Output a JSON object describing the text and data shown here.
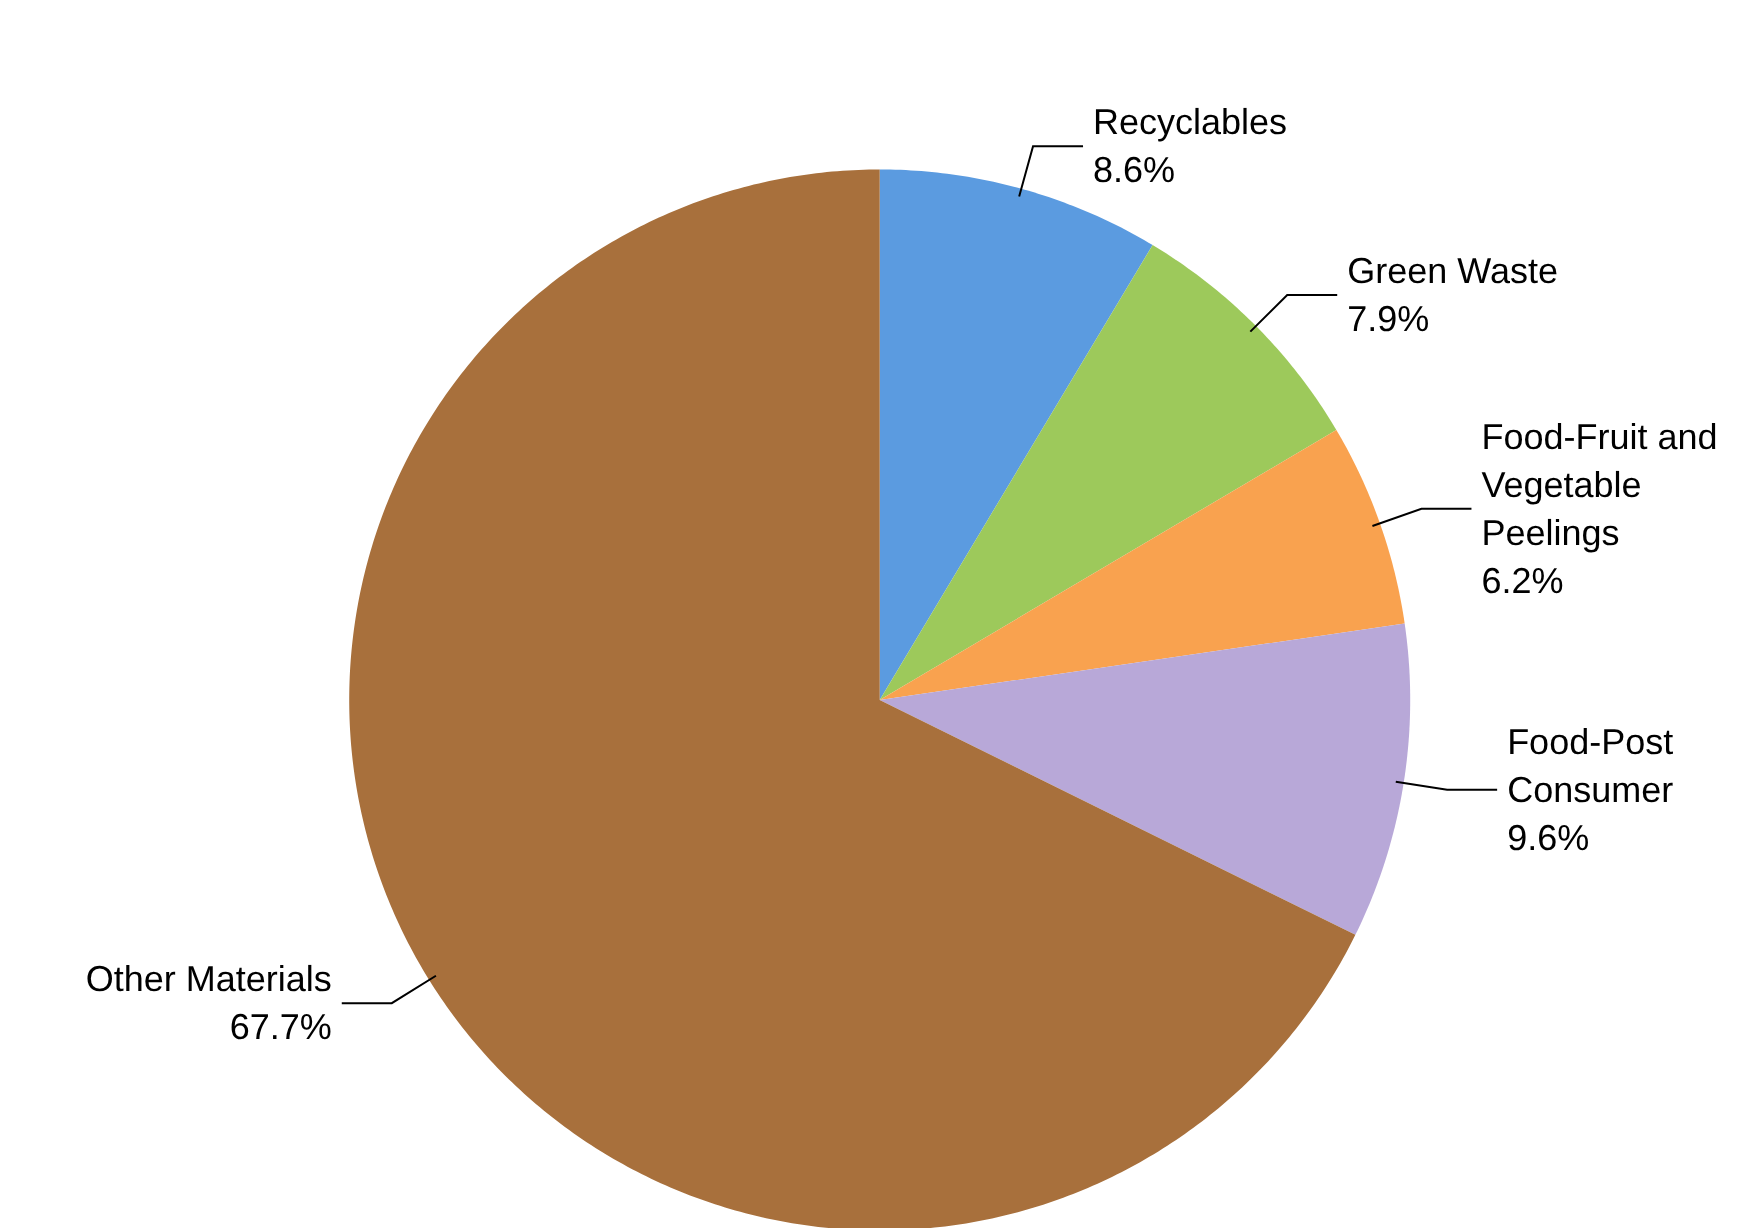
{
  "chart_data": {
    "type": "pie",
    "categories": [
      "Recyclables",
      "Green Waste",
      "Food-Fruit and Vegetable Peelings",
      "Food-Post Consumer",
      "Other Materials"
    ],
    "values": [
      8.6,
      7.9,
      6.2,
      9.6,
      67.7
    ],
    "value_labels": [
      "8.6%",
      "7.9%",
      "6.2%",
      "9.6%",
      "67.7%"
    ],
    "colors": [
      "#5b9be0",
      "#9dc95b",
      "#f9a24f",
      "#b8a8d8",
      "#a8703c"
    ]
  }
}
